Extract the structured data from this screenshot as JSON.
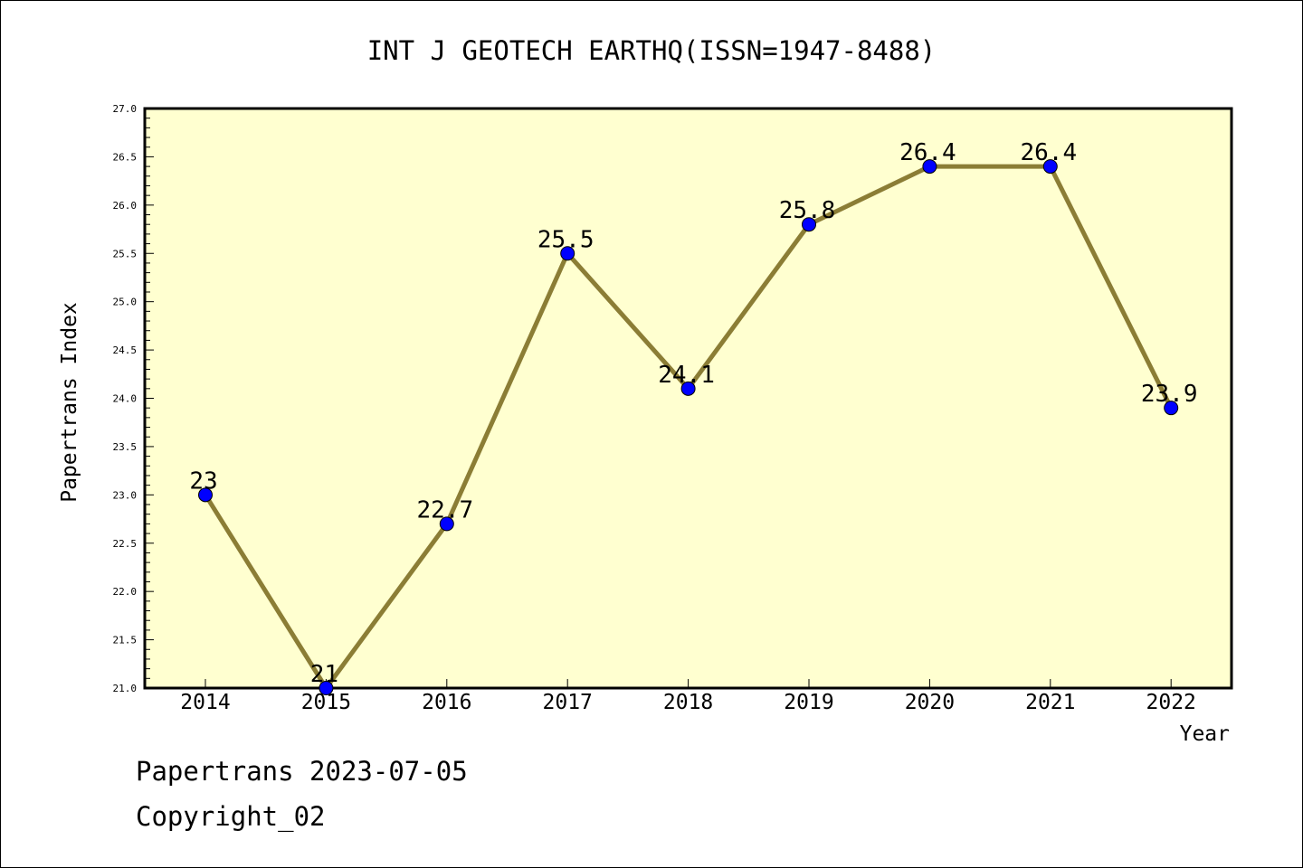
{
  "chart_data": {
    "type": "line",
    "title": "INT J GEOTECH EARTHQ(ISSN=1947-8488)",
    "xlabel": "Year",
    "ylabel": "Papertrans Index",
    "x": [
      "2014",
      "2015",
      "2016",
      "2017",
      "2018",
      "2019",
      "2020",
      "2021",
      "2022"
    ],
    "values": [
      23,
      21,
      22.7,
      25.5,
      24.1,
      25.8,
      26.4,
      26.4,
      23.9
    ],
    "data_labels": [
      "23",
      "21",
      "22.7",
      "25.5",
      "24.1",
      "25.8",
      "26.4",
      "26.4",
      "23.9"
    ],
    "y_ticks": [
      "21.0",
      "21.5",
      "22.0",
      "22.5",
      "23.0",
      "23.5",
      "24.0",
      "24.5",
      "25.0",
      "25.5",
      "26.0",
      "26.5",
      "27.0"
    ],
    "ylim": [
      21,
      27
    ],
    "grid": false,
    "colors": {
      "plot_background": "#ffffd0",
      "line": "#8b7d35",
      "marker": "#0000ff"
    }
  },
  "footer": {
    "source": "Papertrans 2023-07-05",
    "copyright": "Copyright_02"
  }
}
